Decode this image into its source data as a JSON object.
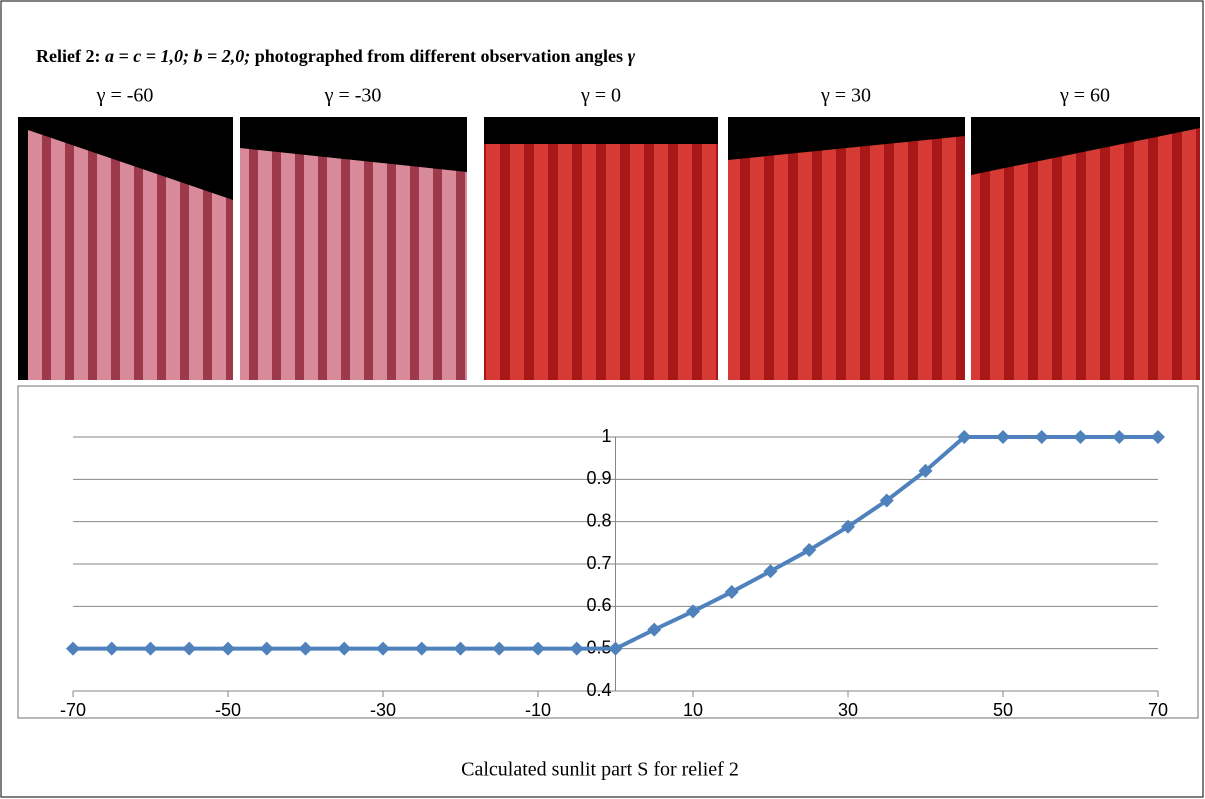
{
  "header": {
    "title": [
      "Relief 2: ",
      "a = c = 1,0; b = 2,0;",
      " photographed from different observation angles ",
      "γ"
    ]
  },
  "photos": [
    {
      "label": "γ = -60"
    },
    {
      "label": "γ = -30"
    },
    {
      "label": "γ = 0"
    },
    {
      "label": "γ = 30"
    },
    {
      "label": "γ = 60"
    }
  ],
  "chart_data": {
    "type": "line",
    "x": [
      -70,
      -65,
      -60,
      -55,
      -50,
      -45,
      -40,
      -35,
      -30,
      -25,
      -20,
      -15,
      -10,
      -5,
      0,
      5,
      10,
      15,
      20,
      25,
      30,
      35,
      40,
      45,
      50,
      55,
      60,
      65,
      70
    ],
    "series": [
      {
        "color": "#4f81bd",
        "values": [
          0.5,
          0.5,
          0.5,
          0.5,
          0.5,
          0.5,
          0.5,
          0.5,
          0.5,
          0.5,
          0.5,
          0.5,
          0.5,
          0.5,
          0.5,
          0.545,
          0.588,
          0.634,
          0.683,
          0.733,
          0.788,
          0.85,
          0.92,
          1,
          1,
          1,
          1,
          1,
          1
        ]
      }
    ],
    "xlim": [
      -70,
      70
    ],
    "xticks": [
      -70,
      -50,
      -30,
      -10,
      10,
      30,
      50,
      70
    ],
    "ylim": [
      0.4,
      1
    ],
    "yticks": [
      0.4,
      0.5,
      0.6,
      0.7,
      0.8,
      0.9,
      1
    ],
    "grid": true,
    "caption": "Calculated sunlit part S for relief 2"
  }
}
